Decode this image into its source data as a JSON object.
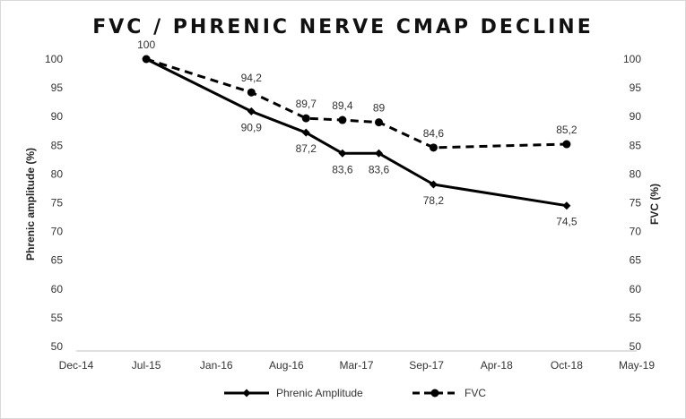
{
  "chart_data": {
    "type": "line",
    "title": "FVC / PHRENIC NERVE CMAP DECLINE",
    "ylabel_left": "Phrenic amplitude (%)",
    "ylabel_right": "FVC (%)",
    "ylim": [
      50,
      100
    ],
    "yticks": [
      50,
      55,
      60,
      65,
      70,
      75,
      80,
      85,
      90,
      95,
      100
    ],
    "yticks_right": [
      50,
      55,
      60,
      65,
      70,
      75,
      80,
      85,
      90,
      95,
      100
    ],
    "xticks": [
      "Dec-14",
      "Jul-15",
      "Jan-16",
      "Aug-16",
      "Mar-17",
      "Sep-17",
      "Apr-18",
      "Oct-18",
      "May-19"
    ],
    "x_axis_index_range": [
      0,
      8
    ],
    "series": [
      {
        "name": "Phrenic Amplitude",
        "style": "solid",
        "marker": "diamond",
        "color": "#000000",
        "x": [
          1,
          2.5,
          3.28,
          3.8,
          4.32,
          5.1,
          7.0
        ],
        "values": [
          100,
          90.9,
          87.2,
          83.6,
          83.6,
          78.2,
          74.5
        ],
        "labels": [
          "",
          "90,9",
          "87,2",
          "83,6",
          "83,6",
          "78,2",
          "74,5"
        ],
        "label_positions": [
          "above",
          "below",
          "below",
          "below",
          "below",
          "below",
          "below"
        ]
      },
      {
        "name": "FVC",
        "style": "dashed",
        "marker": "circle",
        "color": "#000000",
        "x": [
          1,
          2.5,
          3.28,
          3.8,
          4.32,
          5.1,
          7.0
        ],
        "values": [
          100,
          94.2,
          89.7,
          89.4,
          89,
          84.6,
          85.2
        ],
        "labels": [
          "100",
          "94,2",
          "89,7",
          "89,4",
          "89",
          "84,6",
          "85,2"
        ],
        "label_positions": [
          "above",
          "above",
          "above",
          "above",
          "above",
          "above",
          "above"
        ]
      }
    ],
    "legend": [
      "Phrenic Amplitude",
      "FVC"
    ],
    "legend_position": "bottom",
    "grid": false
  }
}
